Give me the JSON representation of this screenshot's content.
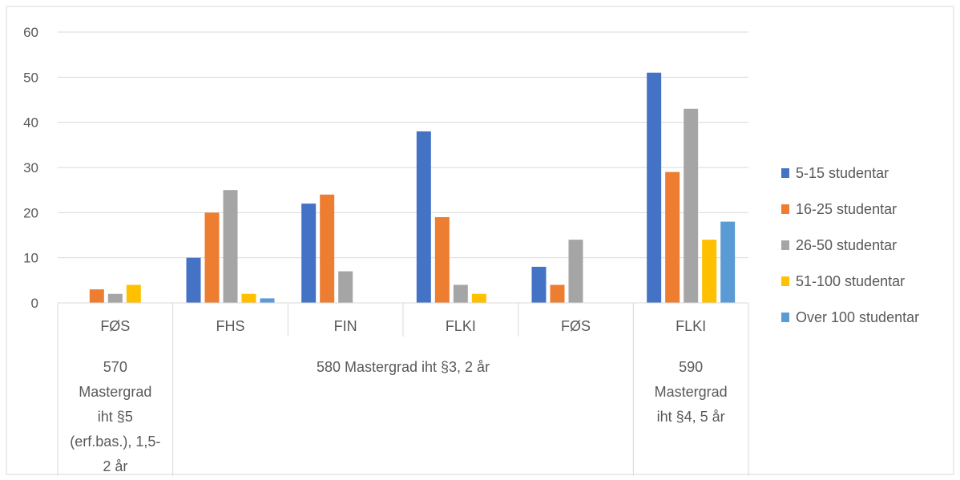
{
  "chart_data": {
    "type": "bar",
    "ylim": [
      0,
      60
    ],
    "yticks": [
      0,
      10,
      20,
      30,
      40,
      50,
      60
    ],
    "grid": true,
    "legend_position": "right",
    "categories": [
      "FØS",
      "FHS",
      "FIN",
      "FLKI",
      "FØS",
      "FLKI"
    ],
    "groups": [
      {
        "lines": [
          "570",
          "Mastergrad",
          "iht §5",
          "(erf.bas.), 1,5-",
          "2 år"
        ],
        "categories": [
          0
        ]
      },
      {
        "lines": [
          "580 Mastergrad iht §3, 2 år"
        ],
        "categories": [
          1,
          2,
          3,
          4
        ]
      },
      {
        "lines": [
          "590",
          "Mastergrad",
          "iht §4, 5 år"
        ],
        "categories": [
          5
        ]
      }
    ],
    "series": [
      {
        "name": "5-15 studentar",
        "color": "#4472C4",
        "values": [
          null,
          10,
          22,
          38,
          8,
          51
        ]
      },
      {
        "name": "16-25 studentar",
        "color": "#ED7D31",
        "values": [
          3,
          20,
          24,
          19,
          4,
          29
        ]
      },
      {
        "name": "26-50 studentar",
        "color": "#A5A5A5",
        "values": [
          2,
          25,
          7,
          4,
          14,
          43
        ]
      },
      {
        "name": "51-100 studentar",
        "color": "#FFC000",
        "values": [
          4,
          2,
          null,
          2,
          null,
          14
        ]
      },
      {
        "name": "Over 100 studentar",
        "color": "#5B9BD5",
        "values": [
          null,
          1,
          null,
          null,
          null,
          18
        ]
      }
    ]
  }
}
